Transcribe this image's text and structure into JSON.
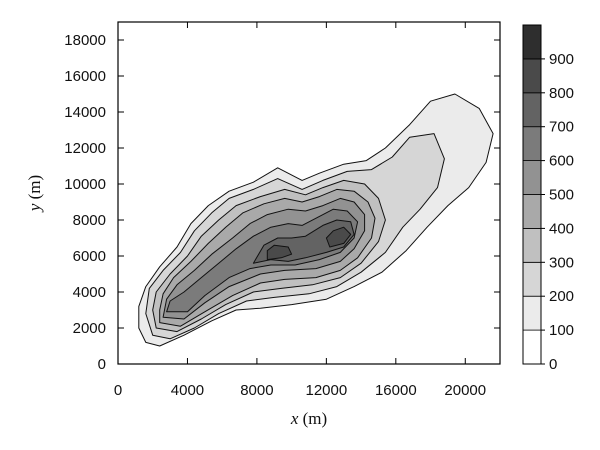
{
  "chart_data": {
    "type": "heatmap",
    "subtype": "filled-contour",
    "title": "",
    "xlabel": {
      "var": "x",
      "unit": "(m)"
    },
    "ylabel": {
      "var": "y",
      "unit": "(m)"
    },
    "xlim": [
      0,
      22000
    ],
    "ylim": [
      0,
      19000
    ],
    "xticks": [
      0,
      4000,
      8000,
      12000,
      16000,
      20000
    ],
    "yticks": [
      0,
      2000,
      4000,
      6000,
      8000,
      10000,
      12000,
      14000,
      16000,
      18000
    ],
    "grid": false,
    "colorbar": {
      "ticks": [
        0,
        100,
        200,
        300,
        400,
        500,
        600,
        700,
        800,
        900
      ],
      "levels": [
        0,
        100,
        200,
        300,
        400,
        500,
        600,
        700,
        800,
        900,
        1000
      ],
      "colors": [
        "#ffffff",
        "#ebebeb",
        "#d6d6d6",
        "#c0c0c0",
        "#a9a9a9",
        "#929292",
        "#7b7b7b",
        "#636363",
        "#4a4a4a",
        "#2e2e2e"
      ],
      "position": "right"
    },
    "contours": [
      {
        "level": 100,
        "points": [
          [
            1600,
            1200
          ],
          [
            2400,
            1000
          ],
          [
            3800,
            1600
          ],
          [
            5400,
            2400
          ],
          [
            6800,
            3000
          ],
          [
            8200,
            3100
          ],
          [
            10000,
            3300
          ],
          [
            12000,
            3600
          ],
          [
            13600,
            4300
          ],
          [
            15200,
            5100
          ],
          [
            16600,
            6300
          ],
          [
            17800,
            7600
          ],
          [
            19000,
            8800
          ],
          [
            20200,
            9800
          ],
          [
            21200,
            11200
          ],
          [
            21600,
            12800
          ],
          [
            20800,
            14200
          ],
          [
            19400,
            15000
          ],
          [
            18000,
            14600
          ],
          [
            16800,
            13300
          ],
          [
            15400,
            12000
          ],
          [
            14300,
            11300
          ],
          [
            13000,
            11100
          ],
          [
            11600,
            10600
          ],
          [
            10600,
            10200
          ],
          [
            9200,
            10900
          ],
          [
            7800,
            10100
          ],
          [
            6400,
            9600
          ],
          [
            5200,
            8800
          ],
          [
            4200,
            7800
          ],
          [
            3400,
            6500
          ],
          [
            2400,
            5400
          ],
          [
            1600,
            4300
          ],
          [
            1200,
            3200
          ],
          [
            1200,
            2000
          ]
        ]
      },
      {
        "level": 200,
        "points": [
          [
            2000,
            1600
          ],
          [
            3000,
            1400
          ],
          [
            4400,
            2000
          ],
          [
            5800,
            2800
          ],
          [
            7400,
            3500
          ],
          [
            9000,
            3700
          ],
          [
            11000,
            3900
          ],
          [
            12600,
            4300
          ],
          [
            14000,
            5100
          ],
          [
            15400,
            6200
          ],
          [
            16400,
            7600
          ],
          [
            17400,
            8600
          ],
          [
            18400,
            9800
          ],
          [
            18800,
            11400
          ],
          [
            18200,
            12800
          ],
          [
            16800,
            12600
          ],
          [
            15800,
            11500
          ],
          [
            14600,
            10800
          ],
          [
            13200,
            10700
          ],
          [
            11800,
            10200
          ],
          [
            10600,
            9700
          ],
          [
            9200,
            10300
          ],
          [
            7800,
            9700
          ],
          [
            6400,
            9200
          ],
          [
            5400,
            8400
          ],
          [
            4400,
            7400
          ],
          [
            3600,
            6200
          ],
          [
            2600,
            5200
          ],
          [
            1800,
            4200
          ],
          [
            1600,
            2800
          ]
        ]
      },
      {
        "level": 300,
        "points": [
          [
            2200,
            2000
          ],
          [
            3400,
            1800
          ],
          [
            4800,
            2500
          ],
          [
            6200,
            3300
          ],
          [
            7800,
            4000
          ],
          [
            9400,
            4200
          ],
          [
            11200,
            4400
          ],
          [
            12800,
            4800
          ],
          [
            14000,
            5600
          ],
          [
            15000,
            6800
          ],
          [
            15400,
            8000
          ],
          [
            15000,
            9200
          ],
          [
            14200,
            10000
          ],
          [
            13000,
            10200
          ],
          [
            11800,
            9800
          ],
          [
            10800,
            9400
          ],
          [
            9600,
            9700
          ],
          [
            8200,
            9300
          ],
          [
            6800,
            8800
          ],
          [
            5800,
            8000
          ],
          [
            4800,
            7100
          ],
          [
            4000,
            6000
          ],
          [
            3000,
            5000
          ],
          [
            2200,
            4000
          ],
          [
            2000,
            3000
          ]
        ]
      },
      {
        "level": 400,
        "points": [
          [
            2400,
            2300
          ],
          [
            3600,
            2100
          ],
          [
            5000,
            2900
          ],
          [
            6600,
            3800
          ],
          [
            8200,
            4500
          ],
          [
            9600,
            4700
          ],
          [
            11400,
            4800
          ],
          [
            12800,
            5200
          ],
          [
            13800,
            5900
          ],
          [
            14600,
            7000
          ],
          [
            14800,
            8100
          ],
          [
            14400,
            9000
          ],
          [
            13600,
            9600
          ],
          [
            12600,
            9700
          ],
          [
            11600,
            9300
          ],
          [
            10600,
            9000
          ],
          [
            9600,
            9200
          ],
          [
            8400,
            8900
          ],
          [
            7200,
            8400
          ],
          [
            6200,
            7600
          ],
          [
            5200,
            6700
          ],
          [
            4200,
            5700
          ],
          [
            3200,
            4800
          ],
          [
            2600,
            3900
          ],
          [
            2400,
            3000
          ]
        ]
      },
      {
        "level": 500,
        "points": [
          [
            2600,
            2600
          ],
          [
            3800,
            2500
          ],
          [
            5000,
            3400
          ],
          [
            6400,
            4300
          ],
          [
            8200,
            5000
          ],
          [
            9600,
            5200
          ],
          [
            11400,
            5300
          ],
          [
            12800,
            5700
          ],
          [
            13600,
            6400
          ],
          [
            14200,
            7400
          ],
          [
            14200,
            8300
          ],
          [
            13600,
            9000
          ],
          [
            12800,
            9200
          ],
          [
            11800,
            8800
          ],
          [
            10800,
            8500
          ],
          [
            9800,
            8600
          ],
          [
            8600,
            8300
          ],
          [
            7600,
            7800
          ],
          [
            6600,
            7000
          ],
          [
            5400,
            6100
          ],
          [
            4400,
            5200
          ],
          [
            3400,
            4400
          ],
          [
            2800,
            3600
          ]
        ]
      },
      {
        "level": 600,
        "points": [
          [
            2800,
            2900
          ],
          [
            4000,
            2900
          ],
          [
            5000,
            3800
          ],
          [
            6400,
            4800
          ],
          [
            7600,
            5300
          ],
          [
            8800,
            5500
          ],
          [
            10200,
            5500
          ],
          [
            11600,
            5800
          ],
          [
            12800,
            6200
          ],
          [
            13600,
            7000
          ],
          [
            13800,
            7900
          ],
          [
            13200,
            8500
          ],
          [
            12400,
            8600
          ],
          [
            11600,
            8200
          ],
          [
            10600,
            7700
          ],
          [
            9800,
            7800
          ],
          [
            8800,
            7600
          ],
          [
            7800,
            7100
          ],
          [
            6800,
            6400
          ],
          [
            5800,
            5600
          ],
          [
            4800,
            4800
          ],
          [
            3800,
            4000
          ],
          [
            3000,
            3500
          ]
        ]
      },
      {
        "level": 700,
        "points": [
          [
            7800,
            5600
          ],
          [
            8800,
            5800
          ],
          [
            9800,
            5700
          ],
          [
            10800,
            5900
          ],
          [
            12000,
            6200
          ],
          [
            13000,
            6500
          ],
          [
            13600,
            7200
          ],
          [
            13400,
            7900
          ],
          [
            12600,
            8000
          ],
          [
            11800,
            7700
          ],
          [
            10800,
            7100
          ],
          [
            10000,
            7000
          ],
          [
            9200,
            7000
          ],
          [
            8400,
            6600
          ]
        ]
      },
      {
        "level": 800,
        "points": [
          [
            8600,
            5800
          ],
          [
            9400,
            5900
          ],
          [
            10000,
            6100
          ],
          [
            9800,
            6500
          ],
          [
            9000,
            6600
          ],
          [
            8600,
            6300
          ]
        ]
      },
      {
        "level": 800,
        "points": [
          [
            12200,
            6500
          ],
          [
            13000,
            6700
          ],
          [
            13400,
            7200
          ],
          [
            13000,
            7600
          ],
          [
            12400,
            7400
          ],
          [
            12000,
            7000
          ]
        ]
      }
    ]
  }
}
